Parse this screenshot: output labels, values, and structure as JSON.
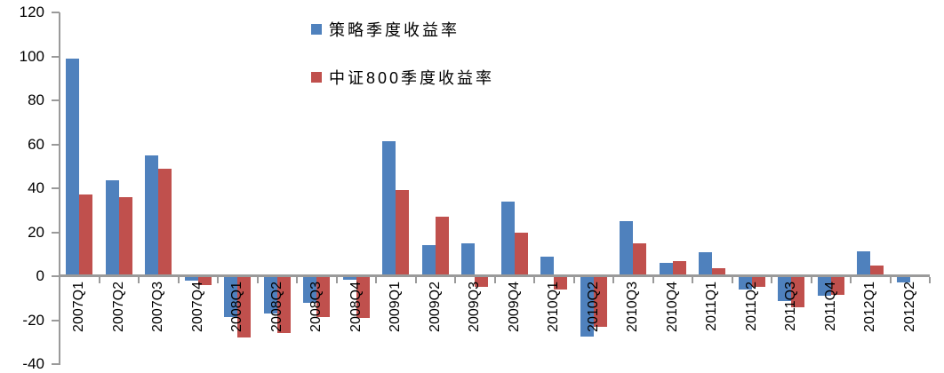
{
  "chart_data": {
    "type": "bar",
    "title": "",
    "xlabel": "",
    "ylabel": "",
    "categories": [
      "2007Q1",
      "2007Q2",
      "2007Q3",
      "2007Q4",
      "2008Q1",
      "2008Q2",
      "2008Q3",
      "2008Q4",
      "2009Q1",
      "2009Q2",
      "2009Q3",
      "2009Q4",
      "2010Q1",
      "2010Q2",
      "2010Q3",
      "2010Q4",
      "2011Q1",
      "2011Q2",
      "2011Q3",
      "2011Q4",
      "2012Q1",
      "2012Q2"
    ],
    "series": [
      {
        "key": "strategy",
        "name": "策略季度收益率",
        "color": "#4F81BD",
        "values": [
          99,
          43.5,
          55,
          -2,
          -18.5,
          -17,
          -12,
          -1.5,
          61.5,
          14,
          15,
          34,
          9,
          -27.5,
          25,
          6,
          11,
          -6,
          -11.5,
          -9,
          11.5,
          -3
        ]
      },
      {
        "key": "csi800",
        "name": "中证800季度收益率",
        "color": "#C0504D",
        "values": [
          37,
          36,
          49,
          -4,
          -28,
          -26,
          -18.5,
          -19,
          39,
          27,
          -5,
          20,
          -6,
          -23,
          15,
          7,
          3.5,
          -5,
          -14,
          -8.5,
          5,
          -0.5
        ]
      }
    ],
    "ylim": [
      -40,
      120
    ],
    "yticks": [
      120,
      100,
      80,
      60,
      40,
      20,
      0,
      -20,
      -40
    ],
    "grid": false,
    "legend_position": "top-center",
    "axis_color": "#9a9a9a",
    "text_color": "#000000",
    "background_color": "#ffffff"
  }
}
